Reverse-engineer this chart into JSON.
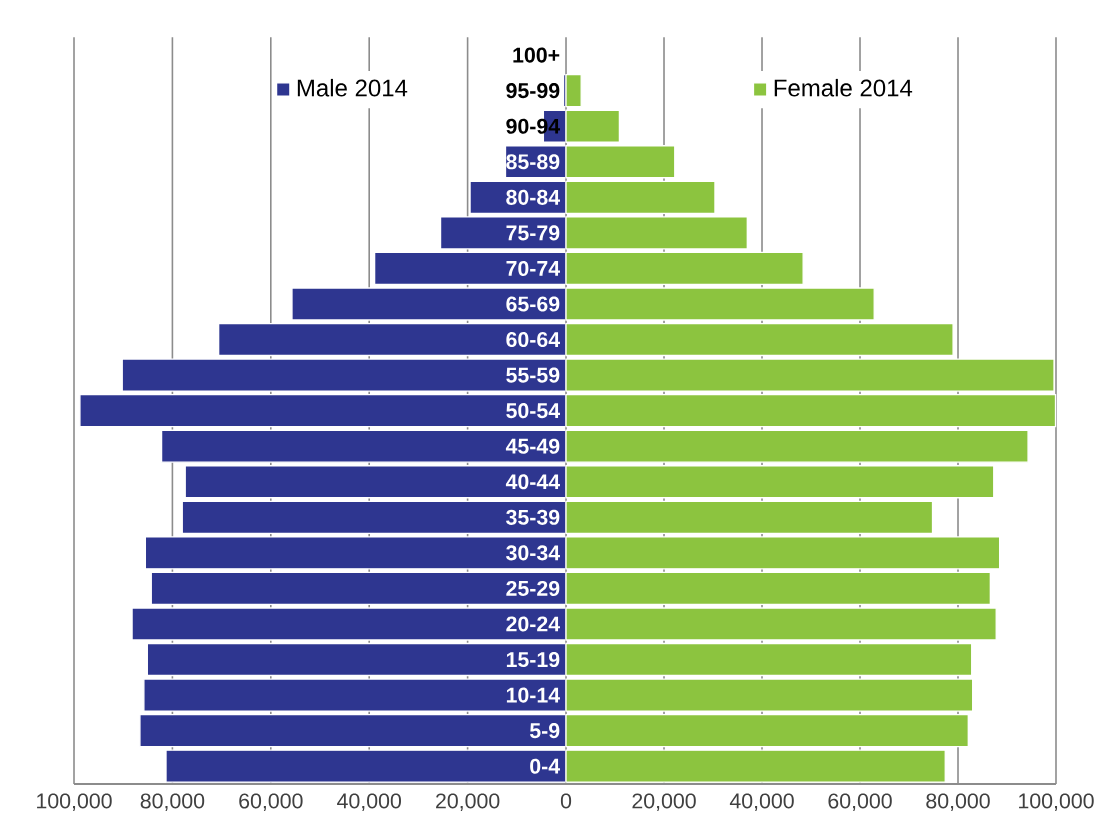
{
  "chart_data": [
    {
      "type": "bar",
      "orientation": "horizontal",
      "categories": [
        "100+",
        "95-99",
        "90-94",
        "85-89",
        "80-84",
        "75-79",
        "70-74",
        "65-69",
        "60-64",
        "55-59",
        "50-54",
        "45-49",
        "40-44",
        "35-39",
        "30-34",
        "25-29",
        "20-24",
        "15-19",
        "10-14",
        "5-9",
        "0-4"
      ],
      "series": [
        {
          "name": "Male 2014",
          "color": "#2e3690",
          "values": [
            null,
            500,
            4600,
            12300,
            19500,
            25500,
            38900,
            55700,
            70600,
            90200,
            98800,
            82200,
            77400,
            78000,
            85500,
            84300,
            88200,
            85100,
            85800,
            86600,
            81300
          ]
        }
      ],
      "xlim": [
        100000,
        0
      ],
      "xticks": [
        {
          "value": 100000,
          "label": "100,000"
        },
        {
          "value": 80000,
          "label": "80,000"
        },
        {
          "value": 60000,
          "label": "60,000"
        },
        {
          "value": 40000,
          "label": "40,000"
        },
        {
          "value": 20000,
          "label": "20,000"
        }
      ],
      "grid": "x",
      "legend": "top"
    },
    {
      "type": "bar",
      "orientation": "horizontal",
      "categories": [
        null,
        null,
        null,
        null,
        null,
        null,
        null,
        null,
        null,
        null,
        null,
        null,
        null,
        null,
        null,
        null,
        null,
        null,
        null,
        null,
        null
      ],
      "series": [
        {
          "name": "Female 2014",
          "color": "#8cc43f",
          "values": [
            null,
            3100,
            10900,
            22200,
            30400,
            37000,
            48400,
            62900,
            79000,
            99600,
            99900,
            94300,
            87300,
            74800,
            88500,
            86600,
            87800,
            82800,
            83000,
            82100,
            77400
          ]
        }
      ],
      "xlim": [
        0,
        100000
      ],
      "xticks": [
        0,
        {
          "value": 20000,
          "label": "20,000"
        },
        {
          "value": 40000,
          "label": "40,000"
        },
        {
          "value": 60000,
          "label": "60,000"
        },
        {
          "value": 80000,
          "label": "80,000"
        },
        {
          "value": 100000,
          "label": "100,000"
        }
      ],
      "grid": "x",
      "legend": "top"
    }
  ]
}
